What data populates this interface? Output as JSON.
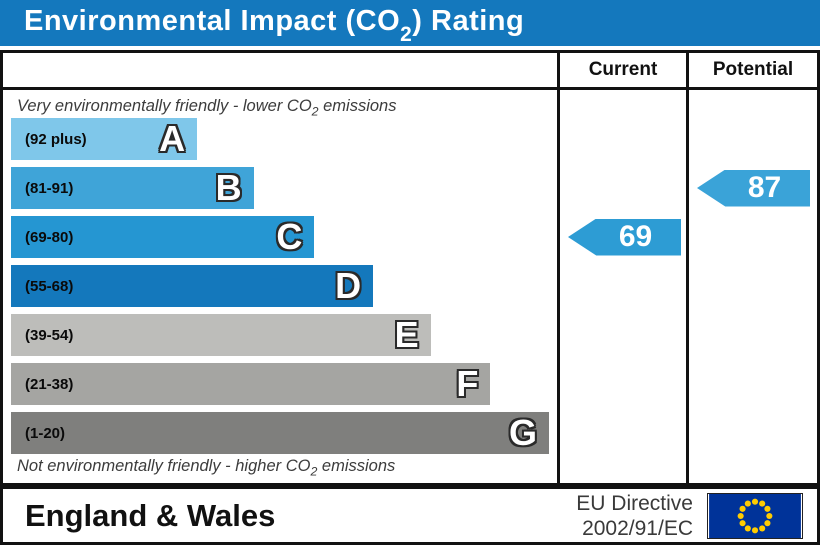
{
  "title": {
    "prefix": "Environmental Impact (CO",
    "sub": "2",
    "suffix": ") Rating"
  },
  "header": {
    "current": "Current",
    "potential": "Potential"
  },
  "scale": {
    "top_note": {
      "prefix": "Very environmentally friendly - lower CO",
      "sub": "2",
      "suffix": " emissions"
    },
    "bottom_note": {
      "prefix": "Not environmentally friendly - higher CO",
      "sub": "2",
      "suffix": " emissions"
    },
    "bands": [
      {
        "letter": "A",
        "range": "(92 plus)",
        "color": "#7fc7ea",
        "width_pct": 34.6
      },
      {
        "letter": "B",
        "range": "(81-91)",
        "color": "#3fa4d8",
        "width_pct": 45.1
      },
      {
        "letter": "C",
        "range": "(69-80)",
        "color": "#2596d2",
        "width_pct": 56.4
      },
      {
        "letter": "D",
        "range": "(55-68)",
        "color": "#1478bc",
        "width_pct": 67.3
      },
      {
        "letter": "E",
        "range": "(39-54)",
        "color": "#bdbdba",
        "width_pct": 78.0
      },
      {
        "letter": "F",
        "range": "(21-38)",
        "color": "#a5a5a2",
        "width_pct": 89.1
      },
      {
        "letter": "G",
        "range": "(1-20)",
        "color": "#7f7f7d",
        "width_pct": 100
      }
    ]
  },
  "ratings": {
    "current": {
      "value": "69",
      "band_index": 2,
      "color": "#2d9cd4"
    },
    "potential": {
      "value": "87",
      "band_index": 1,
      "color": "#3aa3d8"
    }
  },
  "footer": {
    "region": "England & Wales",
    "directive_line1": "EU Directive",
    "directive_line2": "2002/91/EC",
    "eu_flag": {
      "background": "#003399",
      "star_color": "#ffcc00"
    }
  },
  "colors": {
    "title_bar": "#1478bd"
  },
  "chart_data": {
    "type": "bar",
    "title": "Environmental Impact (CO2) Rating",
    "categories": [
      "A (92 plus)",
      "B (81-91)",
      "C (69-80)",
      "D (55-68)",
      "E (39-54)",
      "F (21-38)",
      "G (1-20)"
    ],
    "band_colors": [
      "#7fc7ea",
      "#3fa4d8",
      "#2596d2",
      "#1478bc",
      "#bdbdba",
      "#a5a5a2",
      "#7f7f7d"
    ],
    "bar_lengths_pct": [
      34.6,
      45.1,
      56.4,
      67.3,
      78.0,
      89.1,
      100
    ],
    "series": [
      {
        "name": "Current",
        "value": 69,
        "band": "C"
      },
      {
        "name": "Potential",
        "value": 87,
        "band": "B"
      }
    ],
    "xlabel": "",
    "ylabel": "",
    "annotations": [
      "Very environmentally friendly - lower CO2 emissions",
      "Not environmentally friendly - higher CO2 emissions"
    ],
    "legend_position": "none",
    "grid": false
  }
}
